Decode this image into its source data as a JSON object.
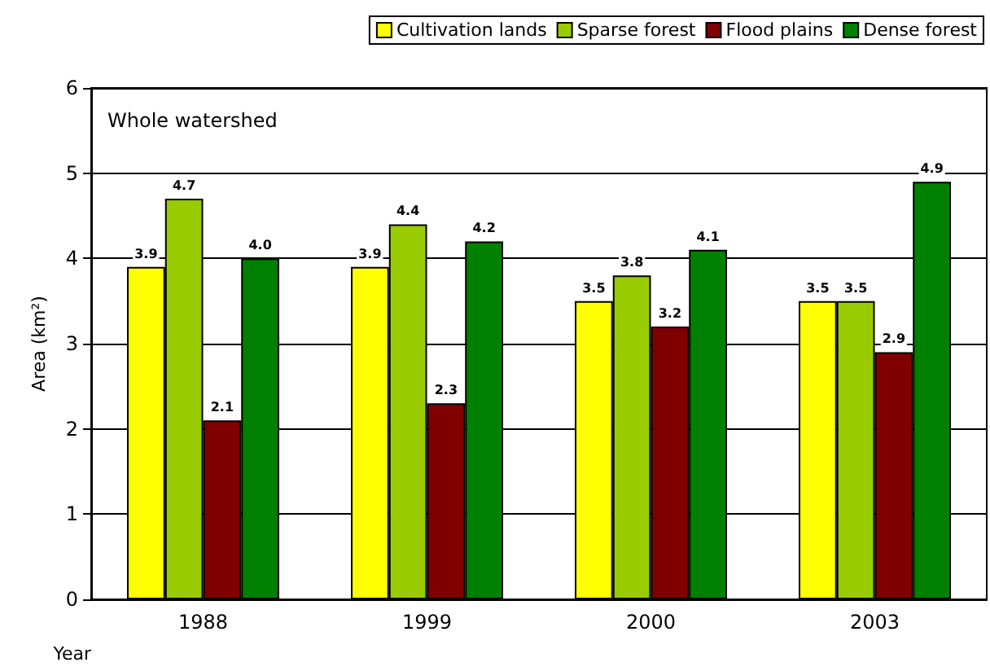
{
  "chart_data": {
    "type": "bar",
    "categories": [
      "1988",
      "1999",
      "2000",
      "2003"
    ],
    "series": [
      {
        "name": "Cultivation lands",
        "color": "#ffff00",
        "values": [
          3.9,
          3.9,
          3.5,
          3.5
        ],
        "value_labels": [
          "3.9",
          "3.9",
          "3.5",
          "3.5"
        ]
      },
      {
        "name": "Sparse forest",
        "color": "#99cc00",
        "values": [
          4.7,
          4.4,
          3.8,
          3.5
        ],
        "value_labels": [
          "4.7",
          "4.4",
          "3.8",
          "3.5"
        ]
      },
      {
        "name": "Flood plains",
        "color": "#800000",
        "values": [
          2.1,
          2.3,
          3.2,
          2.9
        ],
        "value_labels": [
          "2.1",
          "2.3",
          "3.2",
          "2.9"
        ]
      },
      {
        "name": "Dense forest",
        "color": "#008000",
        "values": [
          4.0,
          4.2,
          4.1,
          4.9
        ],
        "value_labels": [
          "4.0",
          "4.2",
          "4.1",
          "4.9"
        ]
      }
    ],
    "xlabel": "Year",
    "ylabel": "Area (km²)",
    "annotations": [
      "Whole watershed"
    ],
    "ylim": [
      0,
      6
    ],
    "yticks": [
      0,
      1,
      2,
      3,
      4,
      5,
      6
    ],
    "grid": "y",
    "legend": "top right"
  }
}
